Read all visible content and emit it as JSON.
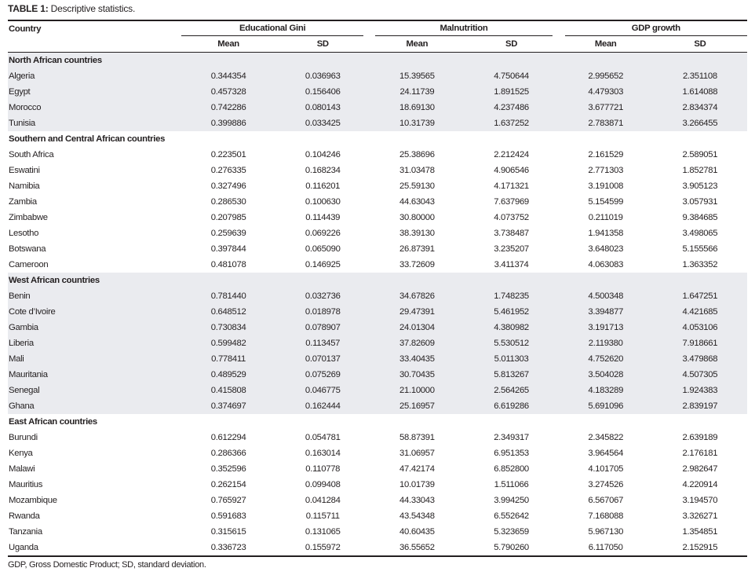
{
  "caption": {
    "label": "TABLE 1:",
    "text": " Descriptive statistics."
  },
  "header": {
    "country": "Country",
    "groups": [
      "Educational Gini",
      "Malnutrition",
      "GDP growth"
    ],
    "sub": [
      "Mean",
      "SD",
      "Mean",
      "SD",
      "Mean",
      "SD"
    ]
  },
  "sections": [
    {
      "title": "North African countries",
      "shaded": true,
      "rows": [
        [
          "Algeria",
          "0.344354",
          "0.036963",
          "15.39565",
          "4.750644",
          "2.995652",
          "2.351108"
        ],
        [
          "Egypt",
          "0.457328",
          "0.156406",
          "24.11739",
          "1.891525",
          "4.479303",
          "1.614088"
        ],
        [
          "Morocco",
          "0.742286",
          "0.080143",
          "18.69130",
          "4.237486",
          "3.677721",
          "2.834374"
        ],
        [
          "Tunisia",
          "0.399886",
          "0.033425",
          "10.31739",
          "1.637252",
          "2.783871",
          "3.266455"
        ]
      ]
    },
    {
      "title": "Southern and Central African countries",
      "shaded": false,
      "rows": [
        [
          "South Africa",
          "0.223501",
          "0.104246",
          "25.38696",
          "2.212424",
          "2.161529",
          "2.589051"
        ],
        [
          "Eswatini",
          "0.276335",
          "0.168234",
          "31.03478",
          "4.906546",
          "2.771303",
          "1.852781"
        ],
        [
          "Namibia",
          "0.327496",
          "0.116201",
          "25.59130",
          "4.171321",
          "3.191008",
          "3.905123"
        ],
        [
          "Zambia",
          "0.286530",
          "0.100630",
          "44.63043",
          "7.637969",
          "5.154599",
          "3.057931"
        ],
        [
          "Zimbabwe",
          "0.207985",
          "0.114439",
          "30.80000",
          "4.073752",
          "0.211019",
          "9.384685"
        ],
        [
          "Lesotho",
          "0.259639",
          "0.069226",
          "38.39130",
          "3.738487",
          "1.941358",
          "3.498065"
        ],
        [
          "Botswana",
          "0.397844",
          "0.065090",
          "26.87391",
          "3.235207",
          "3.648023",
          "5.155566"
        ],
        [
          "Cameroon",
          "0.481078",
          "0.146925",
          "33.72609",
          "3.411374",
          "4.063083",
          "1.363352"
        ]
      ]
    },
    {
      "title": "West African countries",
      "shaded": true,
      "rows": [
        [
          "Benin",
          "0.781440",
          "0.032736",
          "34.67826",
          "1.748235",
          "4.500348",
          "1.647251"
        ],
        [
          "Cote d’Ivoire",
          "0.648512",
          "0.018978",
          "29.47391",
          "5.461952",
          "3.394877",
          "4.421685"
        ],
        [
          "Gambia",
          "0.730834",
          "0.078907",
          "24.01304",
          "4.380982",
          "3.191713",
          "4.053106"
        ],
        [
          "Liberia",
          "0.599482",
          "0.113457",
          "37.82609",
          "5.530512",
          "2.119380",
          "7.918661"
        ],
        [
          "Mali",
          "0.778411",
          "0.070137",
          "33.40435",
          "5.011303",
          "4.752620",
          "3.479868"
        ],
        [
          "Mauritania",
          "0.489529",
          "0.075269",
          "30.70435",
          "5.813267",
          "3.504028",
          "4.507305"
        ],
        [
          "Senegal",
          "0.415808",
          "0.046775",
          "21.10000",
          "2.564265",
          "4.183289",
          "1.924383"
        ],
        [
          "Ghana",
          "0.374697",
          "0.162444",
          "25.16957",
          "6.619286",
          "5.691096",
          "2.839197"
        ]
      ]
    },
    {
      "title": "East African countries",
      "shaded": false,
      "rows": [
        [
          "Burundi",
          "0.612294",
          "0.054781",
          "58.87391",
          "2.349317",
          "2.345822",
          "2.639189"
        ],
        [
          "Kenya",
          "0.286366",
          "0.163014",
          "31.06957",
          "6.951353",
          "3.964564",
          "2.176181"
        ],
        [
          "Malawi",
          "0.352596",
          "0.110778",
          "47.42174",
          "6.852800",
          "4.101705",
          "2.982647"
        ],
        [
          "Mauritius",
          "0.262154",
          "0.099408",
          "10.01739",
          "1.511066",
          "3.274526",
          "4.220914"
        ],
        [
          "Mozambique",
          "0.765927",
          "0.041284",
          "44.33043",
          "3.994250",
          "6.567067",
          "3.194570"
        ],
        [
          "Rwanda",
          "0.591683",
          "0.115711",
          "43.54348",
          "6.552642",
          "7.168088",
          "3.326271"
        ],
        [
          "Tanzania",
          "0.315615",
          "0.131065",
          "40.60435",
          "5.323659",
          "5.967130",
          "1.354851"
        ],
        [
          "Uganda",
          "0.336723",
          "0.155972",
          "36.55652",
          "5.790260",
          "6.117050",
          "2.152915"
        ]
      ]
    }
  ],
  "footnote": "GDP, Gross Domestic Product; SD, standard deviation.",
  "colors": {
    "shade": "#eaebef",
    "rule": "#231f20"
  }
}
